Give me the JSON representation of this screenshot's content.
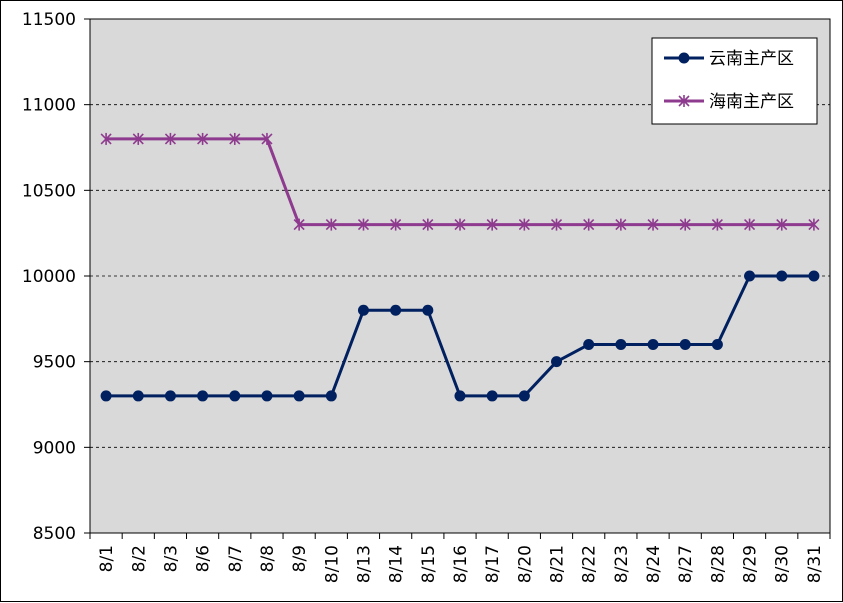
{
  "chart_data": {
    "type": "line",
    "categories": [
      "8/1",
      "8/2",
      "8/3",
      "8/6",
      "8/7",
      "8/8",
      "8/9",
      "8/10",
      "8/13",
      "8/14",
      "8/15",
      "8/16",
      "8/17",
      "8/20",
      "8/21",
      "8/22",
      "8/23",
      "8/24",
      "8/27",
      "8/28",
      "8/29",
      "8/30",
      "8/31"
    ],
    "series": [
      {
        "name": "云南主产区",
        "color": "#002060",
        "marker": "circle",
        "values": [
          9300,
          9300,
          9300,
          9300,
          9300,
          9300,
          9300,
          9300,
          9800,
          9800,
          9800,
          9300,
          9300,
          9300,
          9500,
          9600,
          9600,
          9600,
          9600,
          9600,
          10000,
          10000,
          10000
        ]
      },
      {
        "name": "海南主产区",
        "color": "#8E3A8E",
        "marker": "asterisk",
        "values": [
          10800,
          10800,
          10800,
          10800,
          10800,
          10800,
          10300,
          10300,
          10300,
          10300,
          10300,
          10300,
          10300,
          10300,
          10300,
          10300,
          10300,
          10300,
          10300,
          10300,
          10300,
          10300,
          10300
        ]
      }
    ],
    "ylim": [
      8500,
      11500
    ],
    "yticks": [
      "8500",
      "9000",
      "9500",
      "10000",
      "10500",
      "11000",
      "11500"
    ],
    "grid": "horizontal dashed",
    "legend_position": "top-right",
    "plot_background": "#D9D9D9"
  }
}
